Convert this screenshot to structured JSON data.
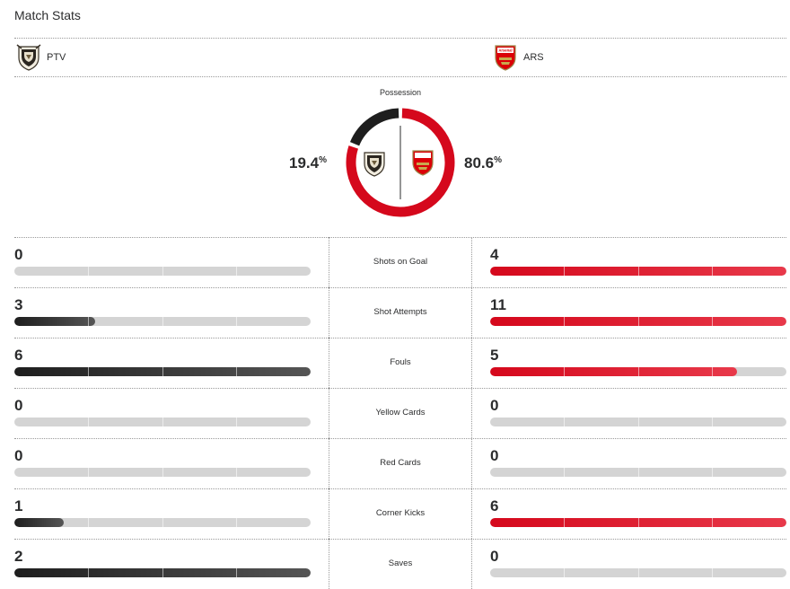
{
  "header": {
    "title": "Match Stats"
  },
  "teams": {
    "home": {
      "abbr": "PTV",
      "possession": 19.4,
      "possession_label": "19.4",
      "color": "#1e1e1e",
      "crest_icon": "port-vale-crest-icon"
    },
    "away": {
      "abbr": "ARS",
      "possession": 80.6,
      "possession_label": "80.6",
      "color": "#d5081c",
      "crest_icon": "arsenal-crest-icon",
      "crest_text": "Arsenal"
    }
  },
  "possession": {
    "label": "Possession",
    "pct_symbol": "%"
  },
  "bar_colors": {
    "empty": "#d4d4d4",
    "home_fill": "#1e1e1e",
    "away_fill": "#d5081c"
  },
  "stats": [
    {
      "label": "Shots on Goal",
      "home": "0",
      "away": "4",
      "home_fraction": 0,
      "away_fraction": 1
    },
    {
      "label": "Shot Attempts",
      "home": "3",
      "away": "11",
      "home_fraction": 0.273,
      "away_fraction": 1
    },
    {
      "label": "Fouls",
      "home": "6",
      "away": "5",
      "home_fraction": 1,
      "away_fraction": 0.833
    },
    {
      "label": "Yellow Cards",
      "home": "0",
      "away": "0",
      "home_fraction": 0,
      "away_fraction": 0
    },
    {
      "label": "Red Cards",
      "home": "0",
      "away": "0",
      "home_fraction": 0,
      "away_fraction": 0
    },
    {
      "label": "Corner Kicks",
      "home": "1",
      "away": "6",
      "home_fraction": 0.167,
      "away_fraction": 1
    },
    {
      "label": "Saves",
      "home": "2",
      "away": "0",
      "home_fraction": 1,
      "away_fraction": 0
    }
  ]
}
